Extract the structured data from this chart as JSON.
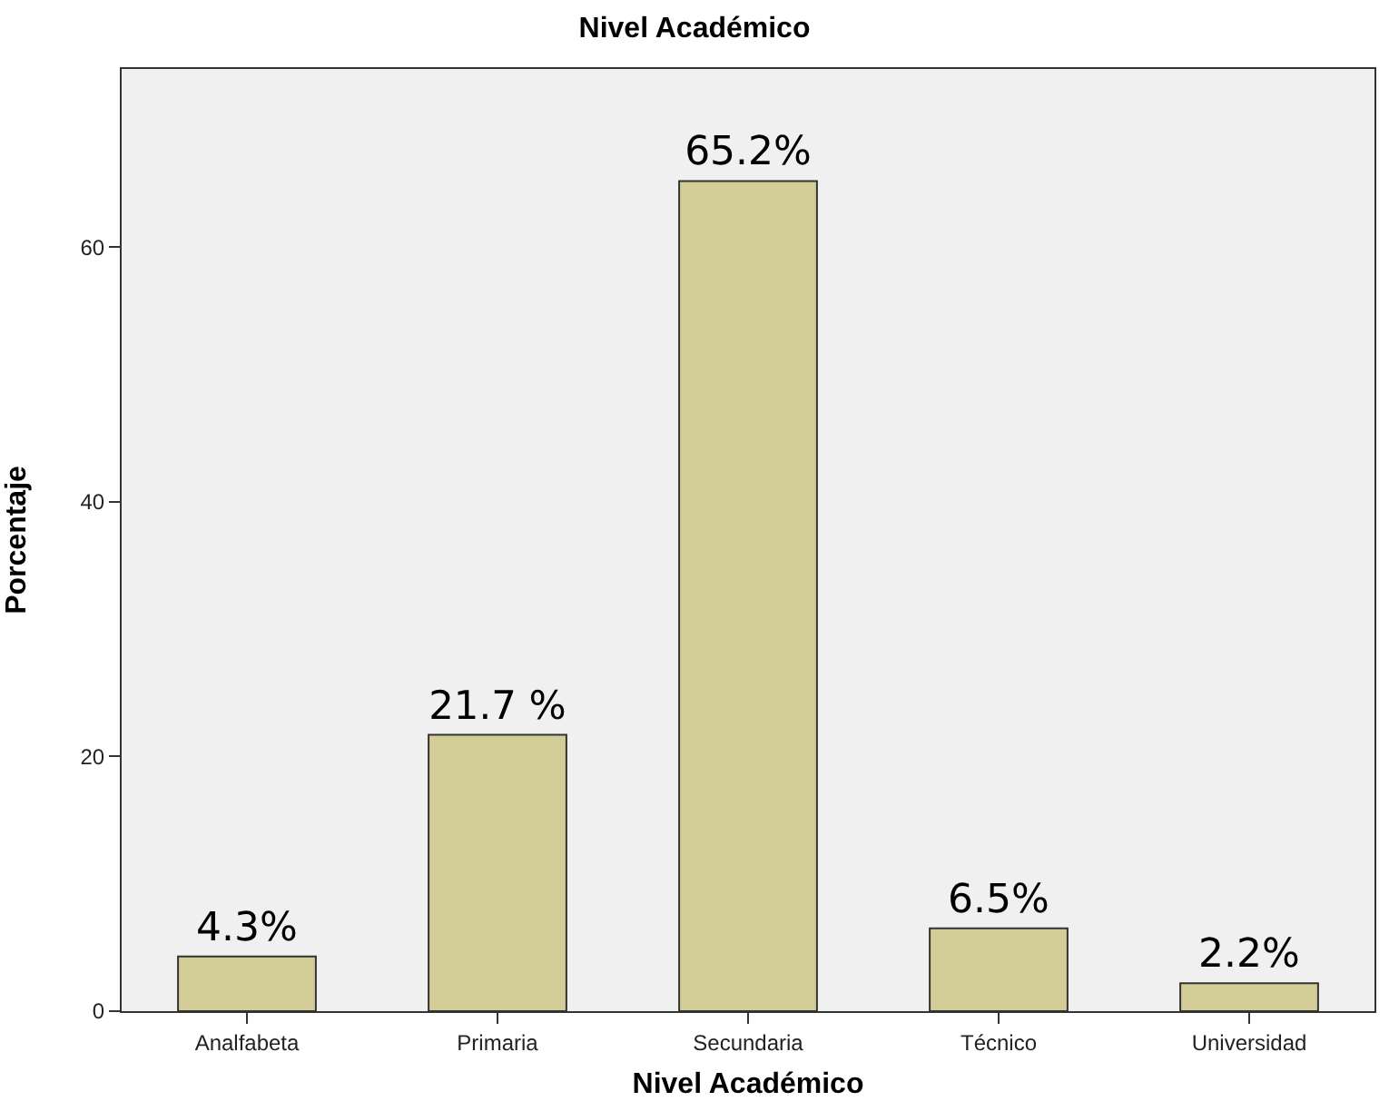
{
  "chart_data": {
    "type": "bar",
    "title": "Nivel Académico",
    "xlabel": "Nivel Académico",
    "ylabel": "Porcentaje",
    "categories": [
      "Analfabeta",
      "Primaria",
      "Secundaria",
      "Técnico",
      "Universidad"
    ],
    "values": [
      4.3,
      21.7,
      65.2,
      6.5,
      2.2
    ],
    "value_labels": [
      "4.3%",
      "21.7 %",
      "65.2%",
      "6.5%",
      "2.2%"
    ],
    "color": "#d3ce97",
    "ylim": [
      0,
      74
    ],
    "yticks": [
      0,
      20,
      40,
      60
    ],
    "grid": false
  }
}
